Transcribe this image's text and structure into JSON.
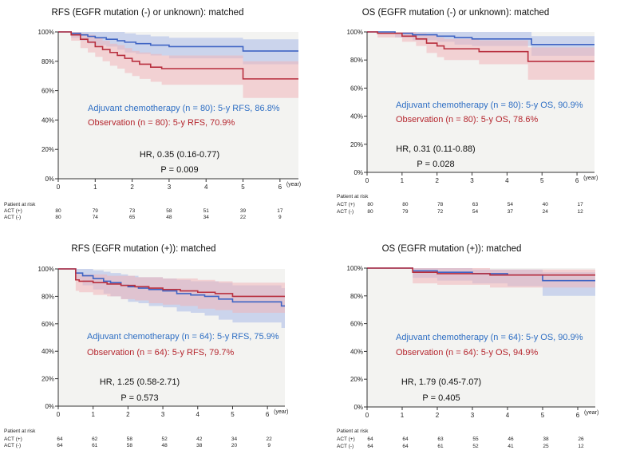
{
  "units": {
    "year": "(year)"
  },
  "risk_header": "Patient at risk",
  "colors": {
    "act": "#3f64c4",
    "obs": "#b82f3e",
    "act_band": "#a9b9e8",
    "obs_band": "#f1b4b9",
    "act_text": "#2f6fc4",
    "obs_text": "#b5262e",
    "plot_bg": "#f3f3f1"
  },
  "chart_data": [
    {
      "type": "line",
      "subtype": "kaplan-meier",
      "title": "RFS (EGFR mutation (-) or unknown): matched",
      "xlabel": "(year)",
      "ylabel": "",
      "xlim": [
        0,
        6.5
      ],
      "ylim": [
        0,
        100
      ],
      "x_ticks": [
        "0",
        "1",
        "2",
        "3",
        "4",
        "5",
        "6"
      ],
      "y_ticks": [
        "0%",
        "20%",
        "40%",
        "60%",
        "80%",
        "100%"
      ],
      "series": [
        {
          "name": "Adjuvant chemotherapy (n = 80): 5-y RFS, 86.8%",
          "key": "act",
          "x": [
            0,
            0.35,
            0.6,
            0.8,
            1.0,
            1.3,
            1.6,
            1.8,
            2.1,
            2.5,
            3.0,
            5.0,
            6.5
          ],
          "y": [
            100,
            99,
            98,
            97,
            96,
            95,
            94,
            93,
            92,
            91,
            90,
            87,
            87
          ],
          "lower": [
            100,
            96,
            94,
            92,
            91,
            90,
            88,
            86,
            85,
            84,
            82,
            78,
            78
          ],
          "upper": [
            100,
            100,
            100,
            100,
            100,
            100,
            100,
            99,
            98,
            97,
            96,
            95,
            95
          ]
        },
        {
          "name": "Observation (n = 80): 5-y RFS, 70.9%",
          "key": "obs",
          "x": [
            0,
            0.35,
            0.6,
            0.8,
            1.0,
            1.2,
            1.4,
            1.6,
            1.8,
            2.0,
            2.2,
            2.5,
            2.8,
            5.0,
            6.5
          ],
          "y": [
            100,
            98,
            95,
            93,
            90,
            88,
            86,
            84,
            82,
            80,
            78,
            76,
            75,
            68,
            68
          ],
          "lower": [
            100,
            94,
            89,
            86,
            83,
            80,
            77,
            75,
            72,
            70,
            68,
            66,
            64,
            55,
            55
          ],
          "upper": [
            100,
            100,
            99,
            98,
            96,
            94,
            92,
            91,
            89,
            87,
            86,
            85,
            84,
            80,
            80
          ]
        }
      ],
      "legend": [
        {
          "text": "Adjuvant chemotherapy (n = 80): 5-y RFS, 86.8%",
          "key": "act"
        },
        {
          "text": "Observation (n = 80): 5-y RFS, 70.9%",
          "key": "obs"
        }
      ],
      "hr": "HR, 0.35 (0.16-0.77)",
      "p": "P = 0.009",
      "risk_table": {
        "act": {
          "label": "ACT (+)",
          "values": [
            "80",
            "79",
            "73",
            "58",
            "51",
            "39",
            "17"
          ]
        },
        "obs": {
          "label": "ACT (-)",
          "values": [
            "80",
            "74",
            "65",
            "48",
            "34",
            "22",
            "9"
          ]
        }
      }
    },
    {
      "type": "line",
      "subtype": "kaplan-meier",
      "title": "OS (EGFR mutation (-) or unknown): matched",
      "xlabel": "(year)",
      "ylabel": "",
      "xlim": [
        0,
        6.5
      ],
      "ylim": [
        0,
        100
      ],
      "x_ticks": [
        "0",
        "1",
        "2",
        "3",
        "4",
        "5",
        "6"
      ],
      "y_ticks": [
        "0%",
        "20%",
        "40%",
        "60%",
        "80%",
        "100%"
      ],
      "series": [
        {
          "name": "Adjuvant chemotherapy (n = 80): 5-y OS, 90.9%",
          "key": "act",
          "x": [
            0,
            0.3,
            0.8,
            1.3,
            2.0,
            2.5,
            3.0,
            4.7,
            6.5
          ],
          "y": [
            100,
            100,
            99,
            98,
            97,
            96,
            95,
            91,
            91
          ],
          "lower": [
            100,
            100,
            96,
            94,
            93,
            91,
            90,
            83,
            83
          ],
          "upper": [
            100,
            100,
            100,
            100,
            100,
            100,
            100,
            97,
            97
          ]
        },
        {
          "name": "Observation (n = 80): 5-y OS, 78.6%",
          "key": "obs",
          "x": [
            0,
            0.3,
            1.0,
            1.4,
            1.7,
            2.0,
            2.2,
            3.2,
            4.6,
            6.5
          ],
          "y": [
            100,
            99,
            97,
            95,
            92,
            90,
            88,
            86,
            79,
            79
          ],
          "lower": [
            100,
            96,
            93,
            90,
            85,
            82,
            80,
            77,
            66,
            66
          ],
          "upper": [
            100,
            100,
            100,
            99,
            98,
            96,
            95,
            94,
            89,
            89
          ]
        }
      ],
      "legend": [
        {
          "text": "Adjuvant chemotherapy (n = 80): 5-y OS, 90.9%",
          "key": "act"
        },
        {
          "text": "Observation (n = 80): 5-y OS, 78.6%",
          "key": "obs"
        }
      ],
      "hr": "HR, 0.31 (0.11-0.88)",
      "p": "P = 0.028",
      "risk_table": {
        "act": {
          "label": "ACT (+)",
          "values": [
            "80",
            "80",
            "78",
            "63",
            "54",
            "40",
            "17"
          ]
        },
        "obs": {
          "label": "ACT (-)",
          "values": [
            "80",
            "79",
            "72",
            "54",
            "37",
            "24",
            "12"
          ]
        }
      }
    },
    {
      "type": "line",
      "subtype": "kaplan-meier",
      "title": "RFS (EGFR mutation (+)): matched",
      "xlabel": "(year)",
      "ylabel": "",
      "xlim": [
        0,
        6.5
      ],
      "ylim": [
        0,
        100
      ],
      "x_ticks": [
        "0",
        "1",
        "2",
        "3",
        "4",
        "5",
        "6"
      ],
      "y_ticks": [
        "0%",
        "20%",
        "40%",
        "60%",
        "80%",
        "100%"
      ],
      "series": [
        {
          "name": "Adjuvant chemotherapy (n = 64): 5-y RFS, 75.9%",
          "key": "act",
          "x": [
            0,
            0.5,
            0.7,
            1.0,
            1.3,
            1.5,
            1.8,
            2.0,
            2.3,
            2.6,
            3.0,
            3.4,
            3.8,
            4.2,
            4.6,
            5.0,
            6.4,
            6.5
          ],
          "y": [
            100,
            97,
            95,
            93,
            91,
            90,
            88,
            87,
            86,
            85,
            84,
            82,
            81,
            80,
            78,
            76,
            73,
            73
          ],
          "lower": [
            100,
            92,
            88,
            85,
            82,
            80,
            78,
            76,
            75,
            73,
            72,
            69,
            68,
            66,
            63,
            61,
            57,
            57
          ],
          "upper": [
            100,
            100,
            100,
            99,
            98,
            97,
            96,
            95,
            94,
            94,
            93,
            92,
            91,
            91,
            90,
            88,
            86,
            86
          ]
        },
        {
          "name": "Observation (n = 64): 5-y RFS, 79.7%",
          "key": "obs",
          "x": [
            0,
            0.5,
            0.6,
            1.0,
            1.4,
            1.8,
            2.2,
            2.6,
            3.0,
            3.5,
            4.0,
            4.5,
            5.0,
            6.5
          ],
          "y": [
            100,
            92,
            91,
            90,
            89,
            88,
            87,
            86,
            85,
            84,
            83,
            82,
            80,
            80
          ],
          "lower": [
            100,
            84,
            83,
            81,
            80,
            78,
            77,
            75,
            74,
            73,
            71,
            70,
            68,
            68
          ],
          "upper": [
            100,
            97,
            96,
            96,
            95,
            95,
            94,
            94,
            93,
            93,
            92,
            91,
            90,
            90
          ]
        }
      ],
      "legend": [
        {
          "text": "Adjuvant chemotherapy (n = 64): 5-y RFS, 75.9%",
          "key": "act"
        },
        {
          "text": "Observation (n = 64): 5-y RFS, 79.7%",
          "key": "obs"
        }
      ],
      "hr": "HR, 1.25 (0.58-2.71)",
      "p": "P = 0.573",
      "risk_table": {
        "act": {
          "label": "ACT (+)",
          "values": [
            "64",
            "62",
            "58",
            "52",
            "42",
            "34",
            "22"
          ]
        },
        "obs": {
          "label": "ACT (-)",
          "values": [
            "64",
            "61",
            "58",
            "48",
            "38",
            "20",
            "9"
          ]
        }
      }
    },
    {
      "type": "line",
      "subtype": "kaplan-meier",
      "title": "OS (EGFR mutation (+)): matched",
      "xlabel": "(year)",
      "ylabel": "",
      "xlim": [
        0,
        6.5
      ],
      "ylim": [
        0,
        100
      ],
      "x_ticks": [
        "0",
        "1",
        "2",
        "3",
        "4",
        "5",
        "6"
      ],
      "y_ticks": [
        "0%",
        "20%",
        "40%",
        "60%",
        "80%",
        "100%"
      ],
      "series": [
        {
          "name": "Adjuvant chemotherapy (n = 64): 5-y OS, 90.9%",
          "key": "act",
          "x": [
            0,
            1.3,
            2.0,
            3.0,
            4.0,
            5.0,
            6.5
          ],
          "y": [
            100,
            98,
            97,
            96,
            95,
            91,
            91
          ],
          "lower": [
            100,
            93,
            91,
            89,
            87,
            80,
            80
          ],
          "upper": [
            100,
            100,
            100,
            99,
            99,
            97,
            97
          ]
        },
        {
          "name": "Observation (n = 64): 5-y OS, 94.9%",
          "key": "obs",
          "x": [
            0,
            1.3,
            2.0,
            3.5,
            5.0,
            6.5
          ],
          "y": [
            100,
            97,
            96,
            95,
            95,
            95
          ],
          "lower": [
            100,
            89,
            88,
            86,
            86,
            86
          ],
          "upper": [
            100,
            100,
            100,
            99,
            99,
            99
          ]
        }
      ],
      "legend": [
        {
          "text": "Adjuvant chemotherapy (n = 64): 5-y OS, 90.9%",
          "key": "act"
        },
        {
          "text": "Observation (n = 64): 5-y OS, 94.9%",
          "key": "obs"
        }
      ],
      "hr": "HR, 1.79 (0.45-7.07)",
      "p": "P = 0.405",
      "risk_table": {
        "act": {
          "label": "ACT (+)",
          "values": [
            "64",
            "64",
            "63",
            "55",
            "46",
            "38",
            "26"
          ]
        },
        "obs": {
          "label": "ACT (-)",
          "values": [
            "64",
            "64",
            "61",
            "52",
            "41",
            "25",
            "12"
          ]
        }
      }
    }
  ]
}
